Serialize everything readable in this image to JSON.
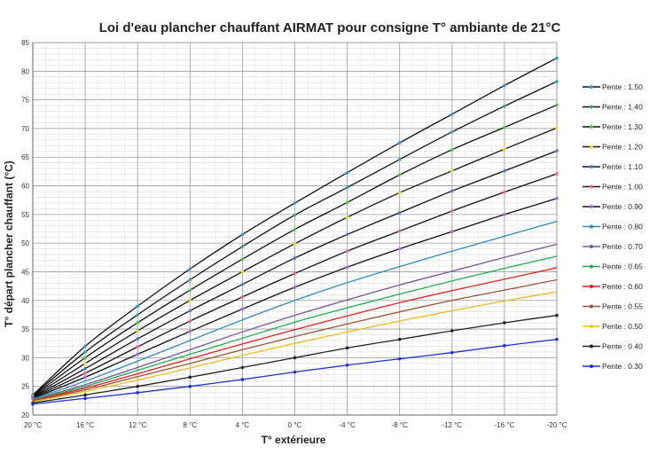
{
  "chart_data": {
    "type": "line",
    "title": "Loi d'eau plancher chauffant AIRMAT pour consigne T° ambiante de 21°C",
    "xlabel": "T° extérieure",
    "ylabel": "T° départ plancher chauffant (°C)",
    "x_ticks": [
      "20 °C",
      "16 °C",
      "12 °C",
      "8 °C",
      "4 °C",
      "0 °C",
      "-4 °C",
      "-8 °C",
      "-12 °C",
      "-16 °C",
      "-20 °C"
    ],
    "y_ticks": [
      "20",
      "25",
      "30",
      "35",
      "40",
      "45",
      "50",
      "55",
      "60",
      "65",
      "70",
      "75",
      "80",
      "85"
    ],
    "x_domain": [
      20,
      -20
    ],
    "ylim": [
      20,
      85
    ],
    "grid": true,
    "legend_position": "right",
    "x": [
      20,
      16,
      12,
      8,
      4,
      0,
      -4,
      -8,
      -12,
      -16,
      -20
    ],
    "series": [
      {
        "name": "Pente : 1.50",
        "color": "#3399dd",
        "values": [
          23.5,
          32.0,
          39.0,
          45.5,
          51.5,
          57.0,
          62.3,
          67.5,
          72.5,
          77.5,
          82.3
        ]
      },
      {
        "name": "Pente : 1.40",
        "color": "#33aa99",
        "values": [
          23.4,
          31.0,
          37.5,
          43.6,
          49.4,
          54.9,
          59.7,
          64.6,
          69.4,
          73.9,
          78.2
        ]
      },
      {
        "name": "Pente : 1.30",
        "color": "#44cc44",
        "values": [
          23.3,
          30.0,
          36.1,
          41.8,
          47.2,
          52.4,
          57.1,
          61.9,
          66.3,
          70.2,
          74.1
        ]
      },
      {
        "name": "Pente : 1.20",
        "color": "#dddd22",
        "values": [
          23.2,
          29.0,
          34.7,
          40.0,
          45.0,
          49.9,
          54.5,
          58.8,
          62.6,
          66.4,
          70.1
        ]
      },
      {
        "name": "Pente : 1.10",
        "color": "#4a7fcf",
        "values": [
          23.1,
          28.1,
          33.3,
          38.2,
          42.8,
          47.4,
          51.5,
          55.3,
          59.1,
          62.6,
          66.1
        ]
      },
      {
        "name": "Pente : 1.00",
        "color": "#ee6688",
        "values": [
          23.0,
          27.3,
          31.9,
          36.4,
          40.6,
          44.7,
          48.6,
          52.1,
          55.6,
          58.9,
          62.1
        ]
      },
      {
        "name": "Pente : 0.90",
        "color": "#aa66ee",
        "values": [
          22.9,
          26.6,
          30.6,
          34.6,
          38.5,
          42.3,
          45.8,
          49.0,
          52.0,
          55.0,
          57.8
        ]
      },
      {
        "name": "Pente : 0.80",
        "color": "#3388bb",
        "values": [
          22.8,
          25.9,
          29.4,
          33.0,
          36.6,
          40.0,
          43.1,
          45.9,
          48.6,
          51.2,
          53.8
        ]
      },
      {
        "name": "Pente : 0.70",
        "color": "#775599",
        "values": [
          22.7,
          25.3,
          28.3,
          31.4,
          34.5,
          37.4,
          40.1,
          42.7,
          45.1,
          47.5,
          49.8
        ]
      },
      {
        "name": "Pente : 0.65",
        "color": "#22aa55",
        "values": [
          22.6,
          25.0,
          27.8,
          30.6,
          33.4,
          36.2,
          38.7,
          41.1,
          43.4,
          45.6,
          47.7
        ]
      },
      {
        "name": "Pente : 0.60",
        "color": "#dd2222",
        "values": [
          22.5,
          24.7,
          27.2,
          29.8,
          32.4,
          34.9,
          37.3,
          39.6,
          41.7,
          43.7,
          45.7
        ]
      },
      {
        "name": "Pente : 0.55",
        "color": "#995533",
        "values": [
          22.4,
          24.4,
          26.7,
          29.0,
          31.4,
          33.7,
          35.9,
          38.0,
          40.0,
          41.8,
          43.6
        ]
      },
      {
        "name": "Pente : 0.50",
        "color": "#eebb22",
        "values": [
          22.3,
          24.1,
          26.1,
          28.2,
          30.4,
          32.5,
          34.5,
          36.4,
          38.2,
          39.9,
          41.5
        ]
      },
      {
        "name": "Pente : 0.40",
        "color": "#222222",
        "values": [
          22.1,
          23.5,
          25.0,
          26.6,
          28.3,
          30.0,
          31.7,
          33.2,
          34.7,
          36.1,
          37.4
        ]
      },
      {
        "name": "Pente : 0.30",
        "color": "#2233cc",
        "values": [
          21.9,
          22.9,
          23.9,
          25.0,
          26.2,
          27.5,
          28.7,
          29.8,
          30.9,
          32.1,
          33.2
        ]
      }
    ]
  }
}
